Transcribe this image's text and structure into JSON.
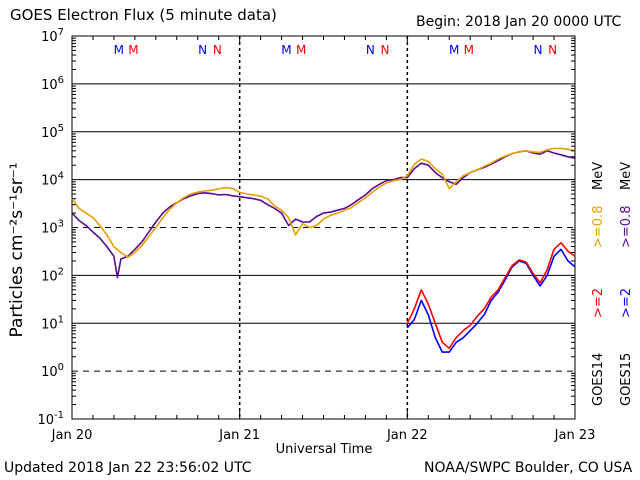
{
  "header": {
    "title": "GOES Electron Flux (5 minute data)",
    "begin": "Begin: 2018 Jan 20 0000 UTC"
  },
  "footer": {
    "updated": "Updated 2018 Jan 22 23:56:02 UTC",
    "source": "NOAA/SWPC Boulder, CO USA"
  },
  "colors": {
    "goes14_2mev": "#ff0000",
    "goes15_2mev": "#0000ff",
    "goes14_08mev": "#e8a000",
    "goes15_08mev": "#5a0a96",
    "marker_m": "#0000ff",
    "marker_m2": "#ff0000"
  },
  "chart_data": {
    "type": "line",
    "xlabel": "Universal Time",
    "ylabel": "Particles cm⁻²s⁻¹sr⁻¹",
    "yscale": "log",
    "ylim": [
      0.1,
      10000000
    ],
    "xlim": [
      0,
      72
    ],
    "x_units": "hours since 2018 Jan 20 0000 UTC",
    "x_ticks": [
      {
        "x": 0,
        "label": "Jan 20"
      },
      {
        "x": 24,
        "label": "Jan 21"
      },
      {
        "x": 48,
        "label": "Jan 22"
      },
      {
        "x": 72,
        "label": "Jan 23"
      }
    ],
    "y_ticks": [
      {
        "base": "10",
        "exp": "-1",
        "value": 0.1
      },
      {
        "base": "10",
        "exp": "0",
        "value": 1
      },
      {
        "base": "10",
        "exp": "1",
        "value": 10
      },
      {
        "base": "10",
        "exp": "2",
        "value": 100
      },
      {
        "base": "10",
        "exp": "3",
        "value": 1000
      },
      {
        "base": "10",
        "exp": "4",
        "value": 10000
      },
      {
        "base": "10",
        "exp": "5",
        "value": 100000
      },
      {
        "base": "10",
        "exp": "6",
        "value": 1000000
      },
      {
        "base": "10",
        "exp": "7",
        "value": 10000000
      }
    ],
    "threshold_dashed": [
      1000,
      1
    ],
    "markers": [
      {
        "x": 6.7,
        "label": "M",
        "color": "#0000ff"
      },
      {
        "x": 8.8,
        "label": "M",
        "color": "#ff0000"
      },
      {
        "x": 18.7,
        "label": "N",
        "color": "#0000ff"
      },
      {
        "x": 20.8,
        "label": "N",
        "color": "#ff0000"
      },
      {
        "x": 30.7,
        "label": "M",
        "color": "#0000ff"
      },
      {
        "x": 32.8,
        "label": "M",
        "color": "#ff0000"
      },
      {
        "x": 42.7,
        "label": "N",
        "color": "#0000ff"
      },
      {
        "x": 44.8,
        "label": "N",
        "color": "#ff0000"
      },
      {
        "x": 54.7,
        "label": "M",
        "color": "#0000ff"
      },
      {
        "x": 56.8,
        "label": "M",
        "color": "#ff0000"
      },
      {
        "x": 66.7,
        "label": "N",
        "color": "#0000ff"
      },
      {
        "x": 68.8,
        "label": "N",
        "color": "#ff0000"
      }
    ],
    "legend": [
      {
        "satellite": "GOES14",
        "energy": ">=2",
        "color": "#ff0000"
      },
      {
        "satellite": "GOES15",
        "energy": ">=2",
        "color": "#0000ff"
      },
      {
        "energy": ">=0.8",
        "color": "#e8a000"
      },
      {
        "energy": ">=0.8",
        "color": "#5a0a96"
      }
    ],
    "legend_unit": "MeV",
    "series": [
      {
        "name": "GOES15 >=0.8 MeV",
        "color": "#5a0a96",
        "x": [
          0,
          1,
          2,
          3,
          4,
          5,
          6,
          6.5,
          7,
          8,
          9,
          10,
          11,
          12,
          13,
          14,
          15,
          16,
          17,
          18,
          19,
          20,
          21,
          22,
          23,
          24,
          25,
          26,
          27,
          28,
          29,
          30,
          31,
          32,
          33,
          34,
          35,
          36,
          37,
          38,
          39,
          40,
          41,
          42,
          43,
          44,
          45,
          46,
          47,
          48,
          49,
          50,
          51,
          52,
          53,
          54,
          55,
          56,
          57,
          58,
          59,
          60,
          61,
          62,
          63,
          64,
          65,
          66,
          67,
          68,
          69,
          70,
          71,
          72
        ],
        "values": [
          2000,
          1400,
          1100,
          800,
          600,
          400,
          250,
          90,
          220,
          250,
          350,
          500,
          800,
          1300,
          2000,
          2700,
          3300,
          4000,
          4600,
          5100,
          5300,
          5100,
          4800,
          4900,
          4600,
          4400,
          4200,
          4000,
          3700,
          3000,
          2500,
          2000,
          1100,
          1500,
          1300,
          1300,
          1700,
          2000,
          2100,
          2300,
          2500,
          3000,
          3800,
          4800,
          6500,
          8000,
          9500,
          10000,
          11000,
          11000,
          17000,
          22000,
          20000,
          14000,
          11000,
          9000,
          8000,
          11000,
          14000,
          16000,
          18000,
          21000,
          25000,
          30000,
          35000,
          38000,
          40000,
          36000,
          34000,
          40000,
          36000,
          33000,
          30000,
          28000
        ]
      },
      {
        "name": "GOES14 >=0.8 MeV",
        "color": "#e8a000",
        "x": [
          0,
          1,
          2,
          3,
          4,
          5,
          6,
          7,
          8,
          9,
          10,
          11,
          12,
          13,
          14,
          15,
          16,
          17,
          18,
          19,
          20,
          21,
          22,
          23,
          24,
          25,
          26,
          27,
          28,
          29,
          30,
          31,
          32,
          33,
          34,
          35,
          36,
          37,
          38,
          39,
          40,
          41,
          42,
          43,
          44,
          45,
          46,
          47,
          48,
          49,
          50,
          51,
          52,
          53,
          54,
          55,
          56,
          57,
          58,
          59,
          60,
          61,
          62,
          63,
          64,
          65,
          66,
          67,
          68,
          69,
          70,
          71,
          72
        ],
        "values": [
          4000,
          2500,
          2000,
          1600,
          1100,
          700,
          400,
          300,
          240,
          300,
          420,
          650,
          1000,
          1600,
          2400,
          3300,
          4200,
          5000,
          5500,
          5800,
          6000,
          6400,
          6800,
          6500,
          5400,
          5000,
          4800,
          4500,
          4000,
          2800,
          2300,
          1600,
          700,
          1200,
          1000,
          1100,
          1500,
          1800,
          2000,
          2300,
          2600,
          3300,
          4200,
          5500,
          7000,
          8500,
          9500,
          10000,
          12000,
          21000,
          27000,
          24000,
          17000,
          13000,
          6500,
          9000,
          12000,
          14000,
          16000,
          19000,
          22000,
          27000,
          31000,
          35000,
          38000,
          40000,
          38000,
          37000,
          42000,
          45000,
          45000,
          43000,
          40000
        ]
      },
      {
        "name": "GOES15 >=2 MeV",
        "color": "#0000ff",
        "x": [
          48,
          49,
          50,
          51,
          52,
          53,
          54,
          55,
          56,
          57,
          58,
          59,
          60,
          61,
          62,
          63,
          64,
          65,
          66,
          67,
          68,
          69,
          70,
          71,
          72
        ],
        "values": [
          8,
          12,
          30,
          15,
          5,
          2.5,
          2.5,
          4,
          5,
          7,
          10,
          15,
          30,
          45,
          80,
          150,
          200,
          180,
          100,
          60,
          100,
          250,
          350,
          200,
          150
        ]
      },
      {
        "name": "GOES14 >=2 MeV",
        "color": "#ff0000",
        "x": [
          48,
          49,
          50,
          51,
          52,
          53,
          54,
          55,
          56,
          57,
          58,
          59,
          60,
          61,
          62,
          63,
          64,
          65,
          66,
          67,
          68,
          69,
          70,
          71,
          72
        ],
        "values": [
          10,
          20,
          50,
          25,
          10,
          4,
          3,
          5,
          7,
          9,
          14,
          20,
          35,
          50,
          90,
          160,
          210,
          190,
          110,
          70,
          130,
          350,
          480,
          320,
          250
        ]
      }
    ]
  }
}
